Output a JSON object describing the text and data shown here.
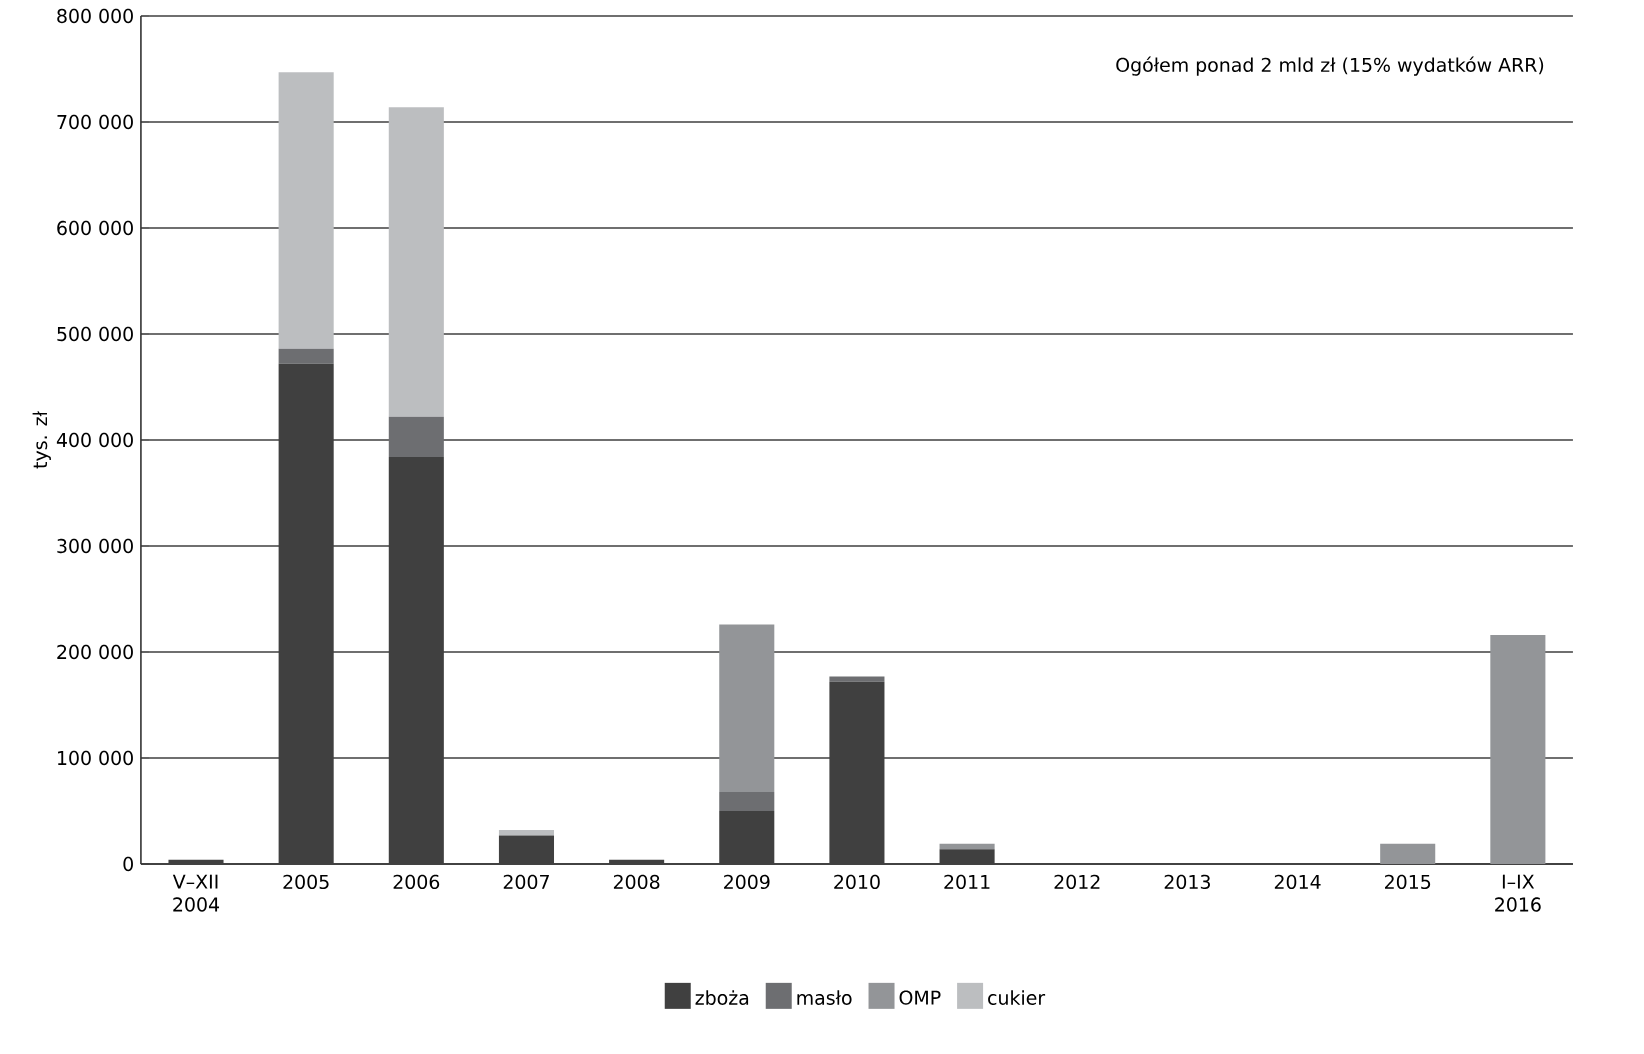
{
  "chart_data": {
    "type": "bar",
    "stacked": true,
    "ylabel": "tys. zł",
    "annotations": [
      "Ogółem ponad 2 mld zł (15% wydatków ARR)"
    ],
    "categories": [
      "V–XII 2004",
      "2005",
      "2006",
      "2007",
      "2008",
      "2009",
      "2010",
      "2011",
      "2012",
      "2013",
      "2014",
      "2015",
      "I–IX 2016"
    ],
    "series": [
      {
        "name": "zboża",
        "color": "#404040",
        "values": [
          4000,
          472000,
          384000,
          27000,
          4000,
          50000,
          172000,
          14000,
          0,
          0,
          0,
          0,
          0
        ]
      },
      {
        "name": "masło",
        "color": "#6d6e71",
        "values": [
          0,
          14000,
          38000,
          0,
          0,
          18000,
          5000,
          0,
          0,
          0,
          0,
          0,
          0
        ]
      },
      {
        "name": "OMP",
        "color": "#939598",
        "values": [
          0,
          0,
          0,
          0,
          0,
          158000,
          0,
          5000,
          0,
          0,
          0,
          19000,
          216000
        ]
      },
      {
        "name": "cukier",
        "color": "#bcbec0",
        "values": [
          0,
          261000,
          292000,
          5000,
          0,
          0,
          0,
          0,
          0,
          0,
          0,
          0,
          0
        ]
      }
    ],
    "ylim": [
      0,
      800000
    ],
    "yticks": [
      0,
      {
        "value": 100000,
        "label": "100 000"
      },
      {
        "value": 200000,
        "label": "200 000"
      },
      {
        "value": 300000,
        "label": "300 000"
      },
      {
        "value": 400000,
        "label": "400 000"
      },
      {
        "value": 500000,
        "label": "500 000"
      },
      {
        "value": 600000,
        "label": "600 000"
      },
      {
        "value": 700000,
        "label": "700 000"
      },
      {
        "value": 800000,
        "label": "800 000"
      }
    ],
    "grid": "y",
    "legend": "bottom"
  }
}
